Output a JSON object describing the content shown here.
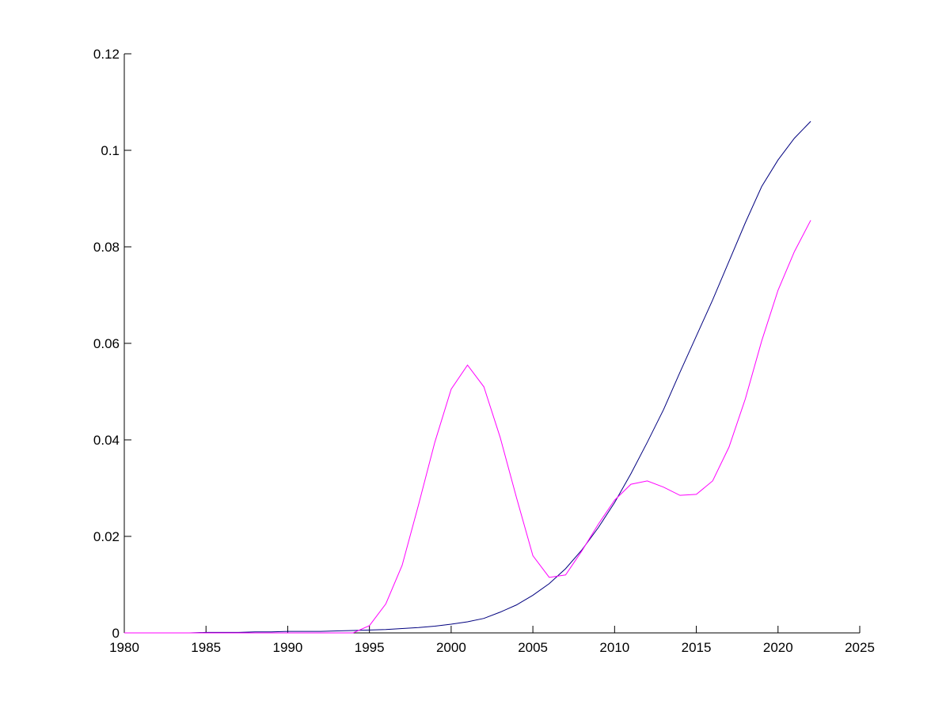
{
  "chart_data": {
    "type": "line",
    "x": [
      1980,
      1981,
      1982,
      1983,
      1984,
      1985,
      1986,
      1987,
      1988,
      1989,
      1990,
      1991,
      1992,
      1993,
      1994,
      1995,
      1996,
      1997,
      1998,
      1999,
      2000,
      2001,
      2002,
      2003,
      2004,
      2005,
      2006,
      2007,
      2008,
      2009,
      2010,
      2011,
      2012,
      2013,
      2014,
      2015,
      2016,
      2017,
      2018,
      2019,
      2020,
      2021,
      2022
    ],
    "series": [
      {
        "color": "#00007f",
        "values": [
          0,
          0,
          0,
          0,
          0,
          0.0001,
          0.0001,
          0.0001,
          0.0002,
          0.0002,
          0.0003,
          0.0003,
          0.0003,
          0.0004,
          0.0005,
          0.0006,
          0.0007,
          0.0009,
          0.0011,
          0.0014,
          0.0018,
          0.0023,
          0.003,
          0.0043,
          0.0058,
          0.0078,
          0.0102,
          0.0133,
          0.0172,
          0.0218,
          0.027,
          0.033,
          0.0395,
          0.0463,
          0.054,
          0.0615,
          0.069,
          0.077,
          0.085,
          0.0925,
          0.098,
          0.1025,
          0.106
        ]
      },
      {
        "color": "#ff00ff",
        "values": [
          0,
          0,
          0,
          0,
          0,
          0,
          0,
          0,
          0,
          0,
          0,
          0,
          0,
          0,
          0,
          0.0015,
          0.006,
          0.014,
          0.0265,
          0.0395,
          0.0505,
          0.0555,
          0.051,
          0.0405,
          0.028,
          0.016,
          0.0115,
          0.012,
          0.017,
          0.0225,
          0.0275,
          0.0308,
          0.0315,
          0.0302,
          0.0285,
          0.0287,
          0.0315,
          0.0385,
          0.0485,
          0.0605,
          0.071,
          0.079,
          0.0855
        ]
      }
    ],
    "xlim": [
      1980,
      2025
    ],
    "xticks": [
      1980,
      1985,
      1990,
      1995,
      2000,
      2005,
      2010,
      2015,
      2020,
      2025
    ],
    "ylim": [
      0,
      0.12
    ],
    "yticks": [
      0,
      0.02,
      0.04,
      0.06,
      0.08,
      0.1,
      0.12
    ]
  }
}
